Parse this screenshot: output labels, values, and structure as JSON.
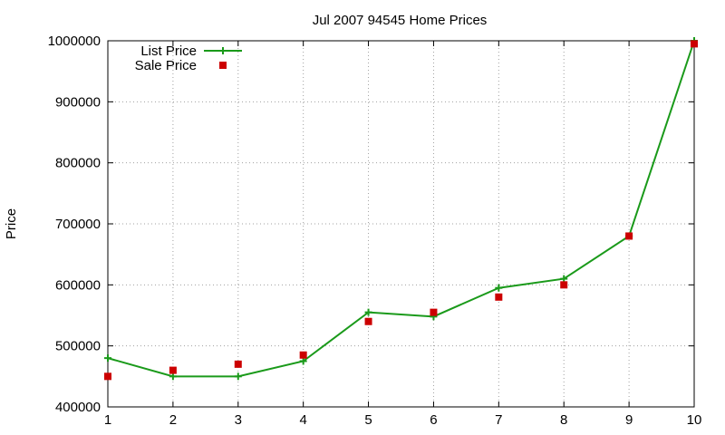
{
  "chart_data": {
    "type": "line",
    "title": "Jul 2007 94545 Home Prices",
    "xlabel": "",
    "ylabel": "Price",
    "xlim": [
      1,
      10
    ],
    "ylim": [
      400000,
      1000000
    ],
    "x_ticks": [
      "1",
      "2",
      "3",
      "4",
      "5",
      "6",
      "7",
      "8",
      "9",
      "10"
    ],
    "y_ticks": [
      "400000",
      "500000",
      "600000",
      "700000",
      "800000",
      "900000",
      "1000000"
    ],
    "grid": true,
    "legend_position": "top-left",
    "x": [
      1,
      2,
      3,
      4,
      5,
      6,
      7,
      8,
      9,
      10
    ],
    "series": [
      {
        "name": "List Price",
        "style": "line-with-plus-markers",
        "color": "#1a9a1a",
        "values": [
          480000,
          450000,
          450000,
          475000,
          555000,
          548000,
          595000,
          610000,
          680000,
          1000000
        ]
      },
      {
        "name": "Sale Price",
        "style": "square-markers",
        "color": "#cc0000",
        "values": [
          450000,
          460000,
          470000,
          485000,
          540000,
          555000,
          580000,
          600000,
          680000,
          995000
        ]
      }
    ]
  }
}
